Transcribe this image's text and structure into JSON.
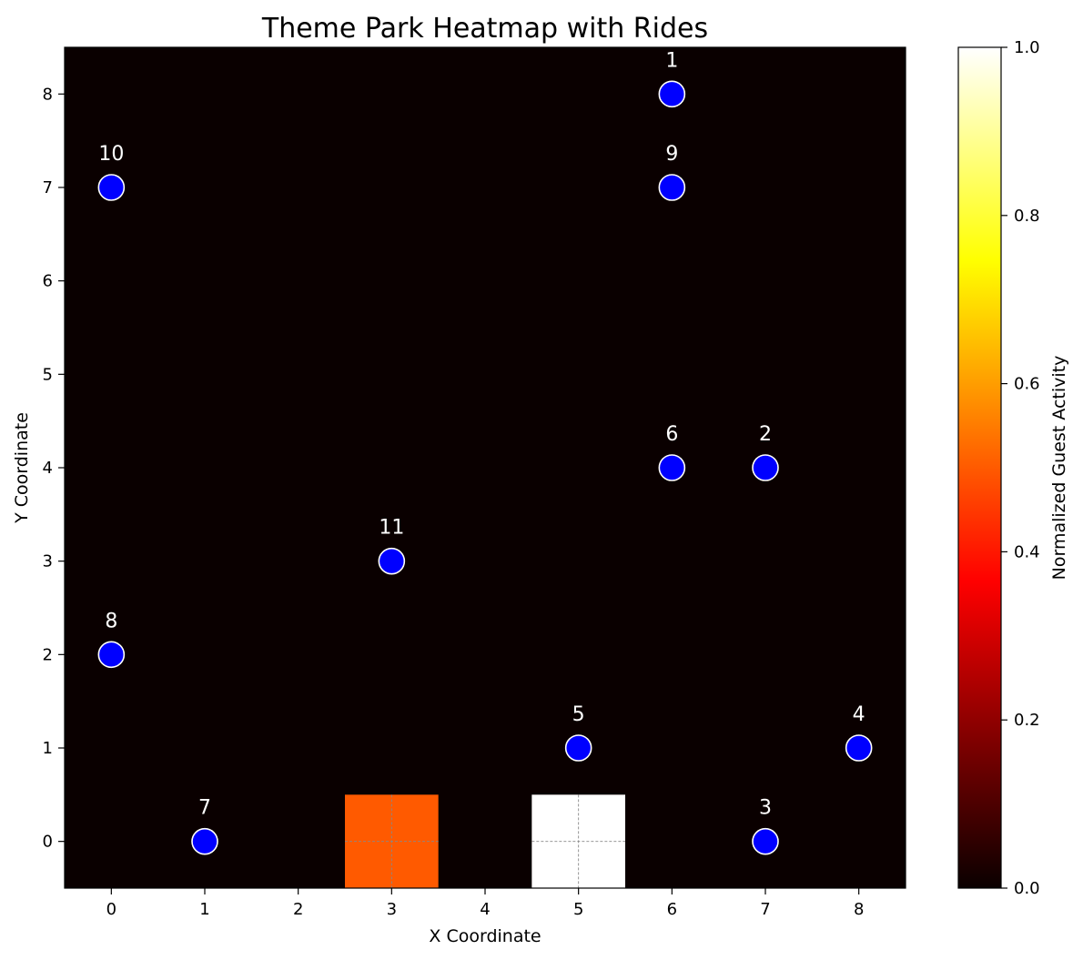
{
  "chart_data": {
    "type": "heatmap",
    "title": "Theme Park Heatmap with Rides",
    "xlabel": "X Coordinate",
    "ylabel": "Y Coordinate",
    "xlim": [
      -0.5,
      8.5
    ],
    "ylim": [
      -0.5,
      8.5
    ],
    "x_ticks": [
      "0",
      "1",
      "2",
      "3",
      "4",
      "5",
      "6",
      "7",
      "8"
    ],
    "y_ticks": [
      "0",
      "1",
      "2",
      "3",
      "4",
      "5",
      "6",
      "7",
      "8"
    ],
    "colormap": "hot",
    "colorbar": {
      "label": "Normalized Guest Activity",
      "range": [
        0.0,
        1.0
      ],
      "ticks": [
        "0.0",
        "0.2",
        "0.4",
        "0.6",
        "0.8",
        "1.0"
      ]
    },
    "heat_cells": [
      {
        "x": 3,
        "y": 0,
        "value": 0.5
      },
      {
        "x": 5,
        "y": 0,
        "value": 1.0
      }
    ],
    "background_value": 0.0,
    "rides": [
      {
        "id": "1",
        "x": 6,
        "y": 8
      },
      {
        "id": "2",
        "x": 7,
        "y": 4
      },
      {
        "id": "3",
        "x": 7,
        "y": 0
      },
      {
        "id": "4",
        "x": 8,
        "y": 1
      },
      {
        "id": "5",
        "x": 5,
        "y": 1
      },
      {
        "id": "6",
        "x": 6,
        "y": 4
      },
      {
        "id": "7",
        "x": 1,
        "y": 0
      },
      {
        "id": "8",
        "x": 0,
        "y": 2
      },
      {
        "id": "9",
        "x": 6,
        "y": 7
      },
      {
        "id": "10",
        "x": 0,
        "y": 7
      },
      {
        "id": "11",
        "x": 3,
        "y": 3
      }
    ],
    "ride_marker_color": "#0000ff",
    "ride_marker_edge": "#ffffff",
    "ride_label_color": "#ffffff",
    "grid_on_heat_cells": true
  }
}
